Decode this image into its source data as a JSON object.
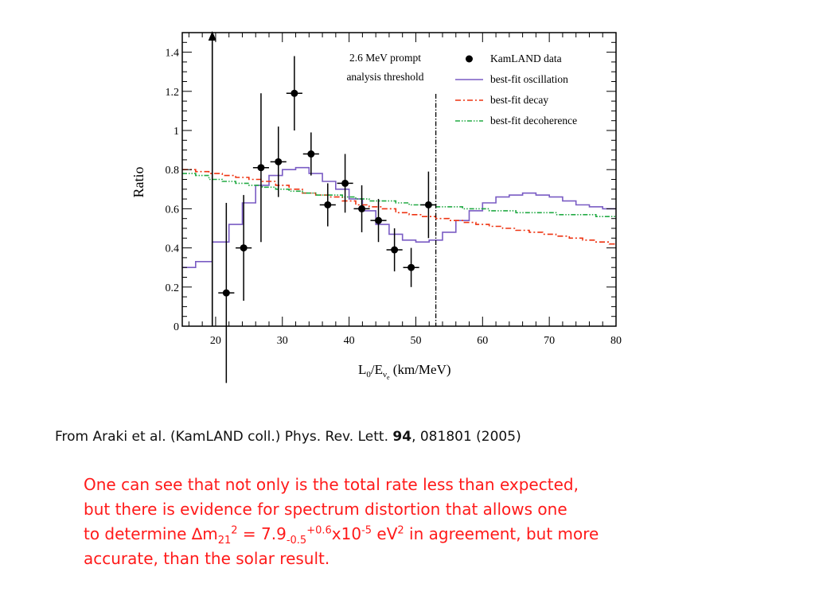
{
  "chart_data": {
    "type": "step",
    "title": "",
    "xlabel": "L0/Eν̄e (km/MeV)",
    "ylabel": "Ratio",
    "xlim": [
      15,
      80
    ],
    "ylim": [
      0,
      1.5
    ],
    "xticks": [
      20,
      30,
      40,
      50,
      60,
      70,
      80
    ],
    "yticks": [
      0,
      0.2,
      0.4,
      0.6,
      0.8,
      1,
      1.2,
      1.4
    ],
    "ytick_labels": [
      "0",
      "0.2",
      "0.4",
      "0.6",
      "0.8",
      "1",
      "1.2",
      "1.4"
    ],
    "grid": false,
    "legend_position": "top-right",
    "annotation": {
      "lines": [
        "2.6 MeV prompt",
        "analysis threshold"
      ],
      "threshold_x": 53,
      "arrow_x": 19.5
    },
    "legend": [
      {
        "label": "KamLAND data",
        "style": "marker",
        "color": "#000000"
      },
      {
        "label": "best-fit oscillation",
        "style": "solid",
        "color": "#7a5cc4"
      },
      {
        "label": "best-fit decay",
        "style": "dashdot",
        "color": "#ee3311"
      },
      {
        "label": "best-fit decoherence",
        "style": "dashdotdot",
        "color": "#22aa44"
      }
    ],
    "data_points": [
      {
        "x": 21.6,
        "y": 0.17,
        "err": 0.46,
        "xerr": 1.2
      },
      {
        "x": 24.2,
        "y": 0.4,
        "err": 0.27,
        "xerr": 1.2
      },
      {
        "x": 26.8,
        "y": 0.81,
        "err": 0.38,
        "xerr": 1.2
      },
      {
        "x": 29.4,
        "y": 0.84,
        "err": 0.18,
        "xerr": 1.2
      },
      {
        "x": 31.8,
        "y": 1.19,
        "err": 0.19,
        "xerr": 1.2
      },
      {
        "x": 34.3,
        "y": 0.88,
        "err": 0.11,
        "xerr": 1.2
      },
      {
        "x": 36.8,
        "y": 0.62,
        "err": 0.11,
        "xerr": 1.2
      },
      {
        "x": 39.4,
        "y": 0.73,
        "err": 0.15,
        "xerr": 1.2
      },
      {
        "x": 41.9,
        "y": 0.6,
        "err": 0.12,
        "xerr": 1.2
      },
      {
        "x": 44.4,
        "y": 0.54,
        "err": 0.11,
        "xerr": 1.2
      },
      {
        "x": 46.8,
        "y": 0.39,
        "err": 0.11,
        "xerr": 1.2
      },
      {
        "x": 49.3,
        "y": 0.3,
        "err": 0.1,
        "xerr": 1.2
      },
      {
        "x": 51.9,
        "y": 0.62,
        "err": 0.17,
        "xerr": 1.2
      }
    ],
    "series": [
      {
        "name": "best-fit oscillation",
        "steps": [
          [
            15.0,
            0.3
          ],
          [
            17.0,
            0.33
          ],
          [
            19.5,
            0.43
          ],
          [
            22.0,
            0.52
          ],
          [
            24.0,
            0.63
          ],
          [
            26.0,
            0.72
          ],
          [
            28.0,
            0.77
          ],
          [
            30.0,
            0.8
          ],
          [
            32.0,
            0.81
          ],
          [
            34.0,
            0.78
          ],
          [
            36.0,
            0.74
          ],
          [
            38.0,
            0.7
          ],
          [
            40.0,
            0.65
          ],
          [
            42.0,
            0.59
          ],
          [
            44.0,
            0.52
          ],
          [
            46.0,
            0.47
          ],
          [
            48.0,
            0.44
          ],
          [
            50.0,
            0.43
          ],
          [
            52.0,
            0.44
          ],
          [
            54.0,
            0.48
          ],
          [
            56.0,
            0.54
          ],
          [
            58.0,
            0.59
          ],
          [
            60.0,
            0.63
          ],
          [
            62.0,
            0.66
          ],
          [
            64.0,
            0.67
          ],
          [
            66.0,
            0.68
          ],
          [
            68.0,
            0.67
          ],
          [
            70.0,
            0.66
          ],
          [
            72.0,
            0.64
          ],
          [
            74.0,
            0.62
          ],
          [
            76.0,
            0.61
          ],
          [
            78.0,
            0.6
          ]
        ],
        "x_end": 80
      },
      {
        "name": "best-fit decay",
        "steps": [
          [
            15.0,
            0.8
          ],
          [
            17.0,
            0.79
          ],
          [
            19.0,
            0.78
          ],
          [
            21.0,
            0.77
          ],
          [
            23.0,
            0.76
          ],
          [
            25.0,
            0.75
          ],
          [
            27.0,
            0.74
          ],
          [
            29.0,
            0.72
          ],
          [
            31.0,
            0.7
          ],
          [
            33.0,
            0.68
          ],
          [
            35.0,
            0.67
          ],
          [
            37.0,
            0.66
          ],
          [
            39.0,
            0.64
          ],
          [
            41.0,
            0.62
          ],
          [
            43.0,
            0.61
          ],
          [
            45.0,
            0.6
          ],
          [
            47.0,
            0.58
          ],
          [
            49.0,
            0.57
          ],
          [
            51.0,
            0.56
          ],
          [
            53.0,
            0.55
          ],
          [
            55.0,
            0.54
          ],
          [
            57.0,
            0.53
          ],
          [
            59.0,
            0.52
          ],
          [
            61.0,
            0.51
          ],
          [
            63.0,
            0.5
          ],
          [
            65.0,
            0.49
          ],
          [
            67.0,
            0.48
          ],
          [
            69.0,
            0.47
          ],
          [
            71.0,
            0.46
          ],
          [
            73.0,
            0.45
          ],
          [
            75.0,
            0.44
          ],
          [
            77.0,
            0.43
          ],
          [
            79.0,
            0.42
          ]
        ],
        "x_end": 80
      },
      {
        "name": "best-fit decoherence",
        "steps": [
          [
            15.0,
            0.78
          ],
          [
            17.0,
            0.77
          ],
          [
            19.0,
            0.75
          ],
          [
            21.0,
            0.74
          ],
          [
            23.0,
            0.73
          ],
          [
            25.0,
            0.72
          ],
          [
            27.0,
            0.71
          ],
          [
            29.0,
            0.7
          ],
          [
            31.0,
            0.69
          ],
          [
            33.0,
            0.68
          ],
          [
            35.0,
            0.67
          ],
          [
            37.0,
            0.67
          ],
          [
            39.0,
            0.66
          ],
          [
            41.0,
            0.65
          ],
          [
            43.0,
            0.64
          ],
          [
            45.0,
            0.64
          ],
          [
            47.0,
            0.63
          ],
          [
            49.0,
            0.62
          ],
          [
            51.0,
            0.62
          ],
          [
            53.0,
            0.61
          ],
          [
            55.0,
            0.61
          ],
          [
            57.0,
            0.6
          ],
          [
            59.0,
            0.6
          ],
          [
            61.0,
            0.59
          ],
          [
            63.0,
            0.59
          ],
          [
            65.0,
            0.58
          ],
          [
            67.0,
            0.58
          ],
          [
            69.0,
            0.58
          ],
          [
            71.0,
            0.57
          ],
          [
            73.0,
            0.57
          ],
          [
            75.0,
            0.57
          ],
          [
            77.0,
            0.56
          ],
          [
            79.0,
            0.56
          ]
        ],
        "x_end": 80
      }
    ]
  },
  "caption": {
    "prefix": "From Araki et al. (KamLAND coll.) Phys. Rev. Lett. ",
    "volume": "94",
    "suffix": ", 081801 (2005)"
  },
  "body": {
    "line1": "One can see that not only is the total rate less than expected,",
    "line2": "but there is evidence for spectrum distortion that allows one",
    "line3_prefix": "to determine ",
    "delta": "∆",
    "m": "m",
    "sub21": "21",
    "sup2": "2",
    "eq": " = 7.9",
    "sub_err": "-0.5",
    "sup_err": "+0.6",
    "times": "x10",
    "sup_exp": "-5",
    "ev": " eV",
    "sup_ev": "2",
    "line3_suffix": " in agreement, but more",
    "line4": "accurate, than the solar result."
  },
  "axis_label_parts": {
    "L": "L",
    "sub0": "0",
    "slash_E": "/E",
    "nu": "ν",
    "sub_e": "e",
    "units": " (km/MeV)"
  }
}
